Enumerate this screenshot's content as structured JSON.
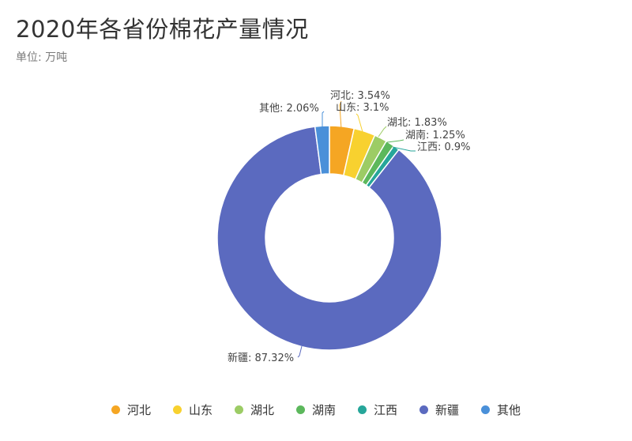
{
  "header": {
    "title": "2020年各省份棉花产量情况",
    "subtitle": "单位: 万吨"
  },
  "chart_data": {
    "type": "pie",
    "donut": true,
    "title": "2020年各省份棉花产量情况",
    "unit": "单位: 万吨",
    "legend_position": "bottom",
    "slices": [
      {
        "name": "河北",
        "percent": 3.54,
        "label": "河北: 3.54%",
        "color": "#f5a623"
      },
      {
        "name": "山东",
        "percent": 3.1,
        "label": "山东: 3.1%",
        "color": "#f8d12f"
      },
      {
        "name": "湖北",
        "percent": 1.83,
        "label": "湖北: 1.83%",
        "color": "#9ccc65"
      },
      {
        "name": "湖南",
        "percent": 1.25,
        "label": "湖南: 1.25%",
        "color": "#5cb85c"
      },
      {
        "name": "江西",
        "percent": 0.9,
        "label": "江西: 0.9%",
        "color": "#26a69a"
      },
      {
        "name": "新疆",
        "percent": 87.32,
        "label": "新疆: 87.32%",
        "color": "#5b6abf"
      },
      {
        "name": "其他",
        "percent": 2.06,
        "label": "其他: 2.06%",
        "color": "#4a90d9"
      }
    ]
  },
  "legend": {
    "items": [
      {
        "name": "河北",
        "color": "#f5a623"
      },
      {
        "name": "山东",
        "color": "#f8d12f"
      },
      {
        "name": "湖北",
        "color": "#9ccc65"
      },
      {
        "name": "湖南",
        "color": "#5cb85c"
      },
      {
        "name": "江西",
        "color": "#26a69a"
      },
      {
        "name": "新疆",
        "color": "#5b6abf"
      },
      {
        "name": "其他",
        "color": "#4a90d9"
      }
    ]
  }
}
